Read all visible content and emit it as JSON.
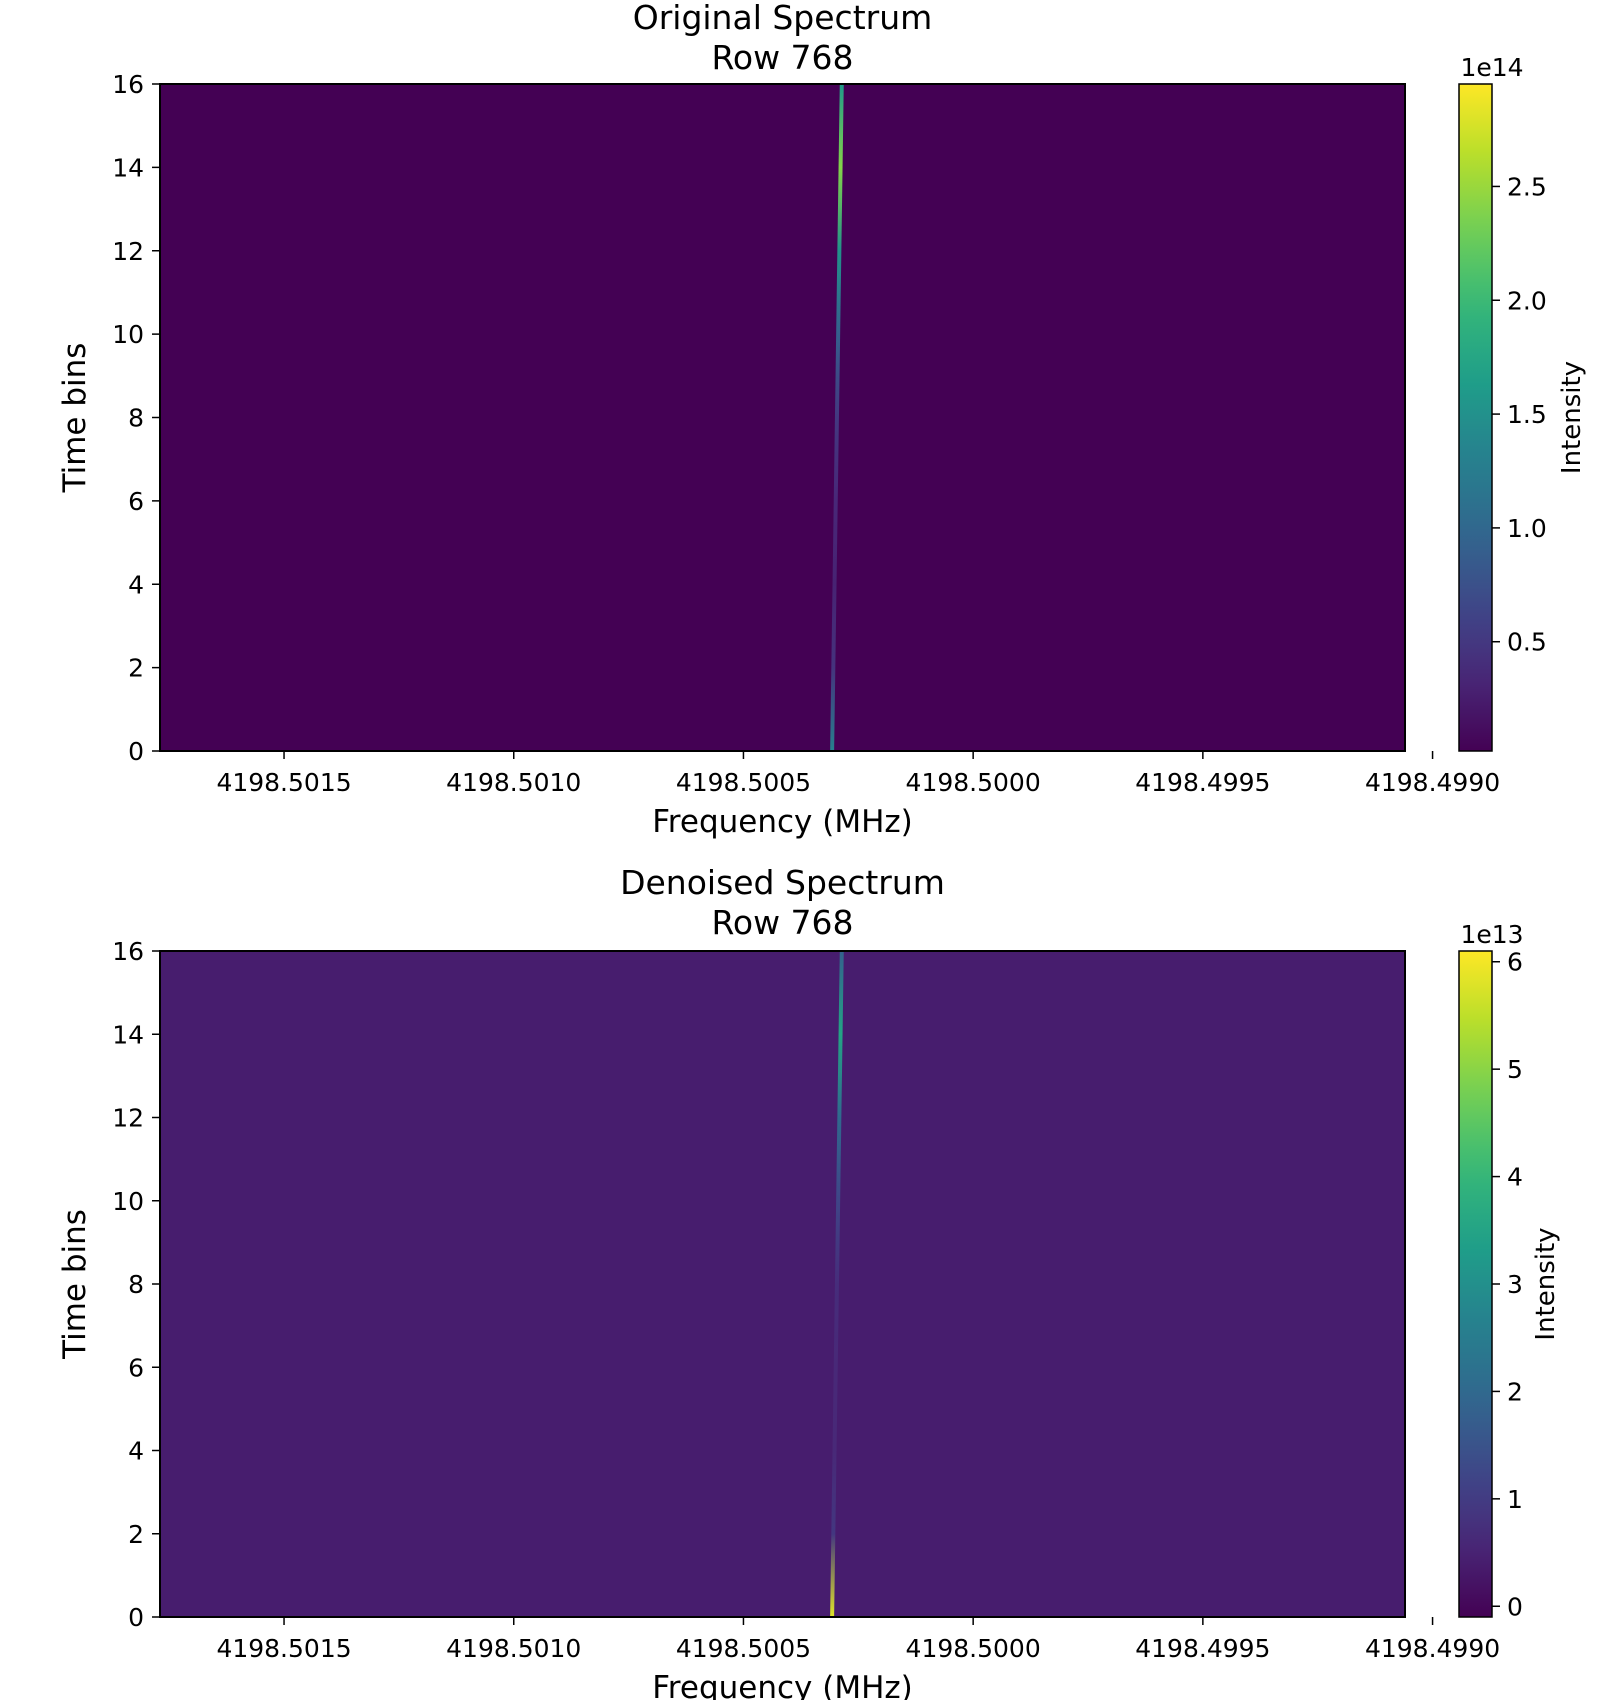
{
  "chart_data": [
    {
      "type": "heatmap",
      "title": [
        "Original Spectrum",
        "Row 768"
      ],
      "xlabel": "Frequency (MHz)",
      "ylabel": "Time bins",
      "xlim": [
        4198.50177,
        4198.49906
      ],
      "ylim": [
        0,
        16
      ],
      "x_ticks": [
        4198.5015,
        4198.501,
        4198.5005,
        4198.5,
        4198.4995,
        4198.499
      ],
      "x_tick_labels": [
        "4198.5015",
        "4198.5010",
        "4198.5005",
        "4198.5000",
        "4198.4995",
        "4198.4990"
      ],
      "y_ticks": [
        0,
        2,
        4,
        6,
        8,
        10,
        12,
        14,
        16
      ],
      "colormap": "viridis",
      "colorbar": {
        "label": "Intensity",
        "offset_text": "1e14",
        "range": [
          0.02,
          2.95
        ],
        "ticks": [
          0.5,
          1.0,
          1.5,
          2.0,
          2.5
        ],
        "tick_labels": [
          "0.5",
          "1.0",
          "1.5",
          "2.0",
          "2.5"
        ]
      },
      "background_level": 0.02,
      "signals": [
        {
          "x_start": 4198.500307,
          "x_end": 4198.500286,
          "y_start": 0,
          "y_end": 16,
          "intensity": [
            1.3,
            0.45,
            0.3,
            0.35,
            0.5,
            0.9,
            1.5,
            2.4,
            1.6
          ]
        }
      ]
    },
    {
      "type": "heatmap",
      "title": [
        "Denoised Spectrum",
        "Row 768"
      ],
      "xlabel": "Frequency (MHz)",
      "ylabel": "Time bins",
      "xlim": [
        4198.50177,
        4198.49906
      ],
      "ylim": [
        0,
        16
      ],
      "x_ticks": [
        4198.5015,
        4198.501,
        4198.5005,
        4198.5,
        4198.4995,
        4198.499
      ],
      "x_tick_labels": [
        "4198.5015",
        "4198.5010",
        "4198.5005",
        "4198.5000",
        "4198.4995",
        "4198.4990"
      ],
      "y_ticks": [
        0,
        2,
        4,
        6,
        8,
        10,
        12,
        14,
        16
      ],
      "colormap": "viridis",
      "colorbar": {
        "label": "Intensity",
        "offset_text": "1e13",
        "range": [
          -0.1,
          6.1
        ],
        "ticks": [
          0,
          1,
          2,
          3,
          4,
          5,
          6
        ],
        "tick_labels": [
          "0",
          "1",
          "2",
          "3",
          "4",
          "5",
          "6"
        ]
      },
      "background_level": 0.4,
      "signals": [
        {
          "x_start": 4198.500307,
          "x_end": 4198.500286,
          "y_start": 0,
          "y_end": 16,
          "intensity": [
            5.8,
            0.9,
            0.6,
            0.6,
            0.7,
            1.2,
            2.0,
            3.5,
            1.8
          ]
        }
      ]
    }
  ]
}
